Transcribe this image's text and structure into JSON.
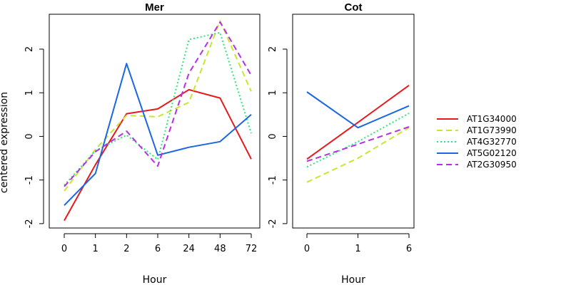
{
  "chart_data": {
    "type": "line",
    "ylabel": "centered expression",
    "legend": {
      "placement": "right",
      "entries": [
        {
          "name": "AT1G34000",
          "color": "#e41a1c",
          "dash": "solid"
        },
        {
          "name": "AT1G73990",
          "color": "#c8e62e",
          "dash": "dashed"
        },
        {
          "name": "AT4G32770",
          "color": "#2ee67a",
          "dash": "dotted"
        },
        {
          "name": "AT5G02120",
          "color": "#1a66e4",
          "dash": "solid"
        },
        {
          "name": "AT2G30950",
          "color": "#b82ee6",
          "dash": "dashed"
        }
      ]
    },
    "panels": [
      {
        "title": "Mer",
        "xlabel": "Hour",
        "categories": [
          "0",
          "1",
          "2",
          "6",
          "24",
          "48",
          "72"
        ],
        "ylim": [
          -2.1,
          2.8
        ],
        "yticks": [
          -2,
          -1,
          0,
          1,
          2
        ],
        "series": [
          {
            "name": "AT1G34000",
            "values": [
              -1.93,
              -0.65,
              0.52,
              0.63,
              1.07,
              0.88,
              -0.52
            ]
          },
          {
            "name": "AT1G73990",
            "values": [
              -1.25,
              -0.3,
              0.48,
              0.45,
              0.78,
              2.65,
              1.03
            ]
          },
          {
            "name": "AT4G32770",
            "values": [
              -1.12,
              -0.33,
              0.03,
              -0.53,
              2.22,
              2.38,
              0.07
            ]
          },
          {
            "name": "AT5G02120",
            "values": [
              -1.58,
              -0.85,
              1.67,
              -0.43,
              -0.25,
              -0.12,
              0.5
            ]
          },
          {
            "name": "AT2G30950",
            "values": [
              -1.15,
              -0.35,
              0.12,
              -0.68,
              1.45,
              2.62,
              1.4
            ]
          }
        ]
      },
      {
        "title": "Cot",
        "xlabel": "Hour",
        "categories": [
          "0",
          "1",
          "6"
        ],
        "ylim": [
          -2.1,
          2.8
        ],
        "yticks": [
          -2,
          -1,
          0,
          1,
          2
        ],
        "series": [
          {
            "name": "AT1G34000",
            "values": [
              -0.52,
              0.32,
              1.17
            ]
          },
          {
            "name": "AT1G73990",
            "values": [
              -1.05,
              -0.5,
              0.2
            ]
          },
          {
            "name": "AT4G32770",
            "values": [
              -0.7,
              -0.12,
              0.53
            ]
          },
          {
            "name": "AT5G02120",
            "values": [
              1.02,
              0.2,
              0.7
            ]
          },
          {
            "name": "AT2G30950",
            "values": [
              -0.57,
              -0.18,
              0.22
            ]
          }
        ]
      }
    ]
  }
}
